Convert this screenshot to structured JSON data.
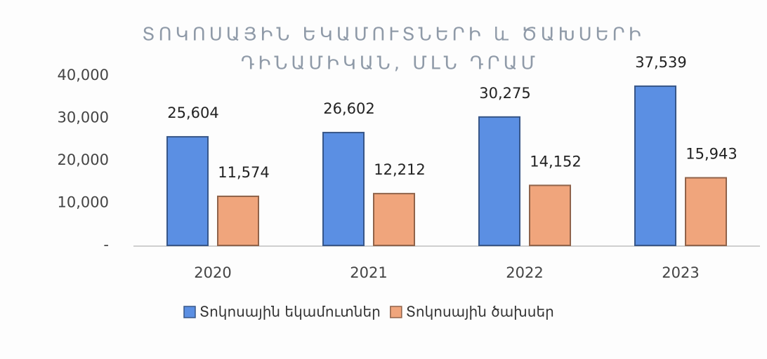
{
  "chart_data": {
    "type": "bar",
    "title": [
      "ՏՈԿՈՍԱՅԻՆ ԵԿԱՄՈՒՏՆԵՐԻ և ԾԱԽՍԵՐԻ",
      "ԴԻՆԱՄԻԿԱՆ, ՄԼՆ ԴՐԱՄ"
    ],
    "categories": [
      "2020",
      "2021",
      "2022",
      "2023"
    ],
    "series": [
      {
        "name": "Տոկոսային եկամուտներ",
        "color": "#5b8fe3",
        "values": [
          25604,
          26602,
          30275,
          37539
        ],
        "value_labels": [
          "25,604",
          "26,602",
          "30,275",
          "37,539"
        ]
      },
      {
        "name": "Տոկոսային ծախսեր",
        "color": "#f0a57c",
        "values": [
          11574,
          12212,
          14152,
          15943
        ],
        "value_labels": [
          "11,574",
          "12,212",
          "14,152",
          "15,943"
        ]
      }
    ],
    "ylim": [
      0,
      40000
    ],
    "yticks": [
      {
        "value": 0,
        "label": "-"
      },
      {
        "value": 10000,
        "label": "10,000"
      },
      {
        "value": 20000,
        "label": "20,000"
      },
      {
        "value": 30000,
        "label": "30,000"
      },
      {
        "value": 40000,
        "label": "40,000"
      }
    ],
    "grid": false
  }
}
